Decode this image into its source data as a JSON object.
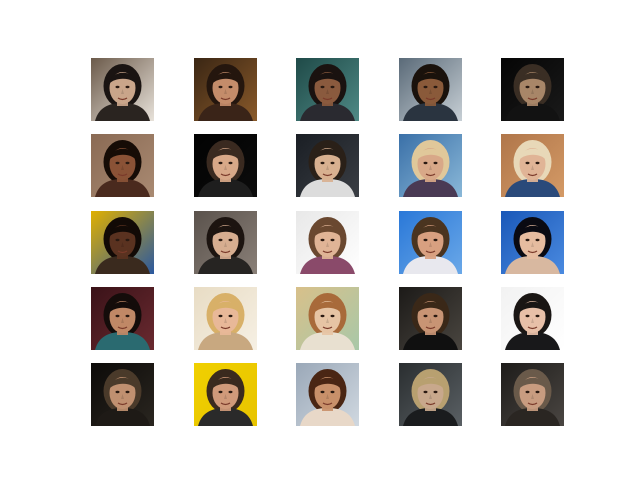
{
  "grid": {
    "rows": 5,
    "cols": 5,
    "tiles": [
      {
        "name": "face-bearded-man-dark-hair",
        "bg": "#6b5a4a",
        "bg2": "#e8e2da",
        "skin": "#c9a58a",
        "hair": "#1a1412",
        "shirt": "#2a2420"
      },
      {
        "name": "face-woman-dark-wavy-hair",
        "bg": "#3a2614",
        "bg2": "#8a5a2a",
        "skin": "#c48c6a",
        "hair": "#24160e",
        "shirt": "#3a2418"
      },
      {
        "name": "face-man-short-hair-teal-bg",
        "bg": "#1f4a48",
        "bg2": "#4f8a86",
        "skin": "#8a5a3e",
        "hair": "#1a1210",
        "shirt": "#2a2a30"
      },
      {
        "name": "face-woman-curly-hair-fence",
        "bg": "#5a6a78",
        "bg2": "#c7cfd5",
        "skin": "#8a5a3a",
        "hair": "#1a120c",
        "shirt": "#2a3440"
      },
      {
        "name": "face-man-long-hair-dark-bg",
        "bg": "#050505",
        "bg2": "#1a1a1a",
        "skin": "#a88668",
        "hair": "#3a2e24",
        "shirt": "#121212"
      },
      {
        "name": "face-woman-long-dark-hair",
        "bg": "#8a6a54",
        "bg2": "#a98a72",
        "skin": "#8a5236",
        "hair": "#160c06",
        "shirt": "#4a2a1e"
      },
      {
        "name": "face-bald-man-black-bg",
        "bg": "#020202",
        "bg2": "#0c0c0c",
        "skin": "#d8a888",
        "hair": "#3a2a20",
        "shirt": "#1e1e1e"
      },
      {
        "name": "face-bald-man-smiling",
        "bg": "#1a1e24",
        "bg2": "#3a3e44",
        "skin": "#d8b090",
        "hair": "#2a2018",
        "shirt": "#dcdcdc"
      },
      {
        "name": "face-older-woman-blonde",
        "bg": "#3a70a8",
        "bg2": "#8ab8d8",
        "skin": "#d8a888",
        "hair": "#e0c89a",
        "shirt": "#4a3a54"
      },
      {
        "name": "face-woman-short-blonde-hair",
        "bg": "#b0764a",
        "bg2": "#d49a66",
        "skin": "#e0b496",
        "hair": "#e8d8b8",
        "shirt": "#2a4a7a"
      },
      {
        "name": "face-woman-curly-hair-yellow-bg",
        "bg": "#e0b000",
        "bg2": "#2a58a0",
        "skin": "#5a3220",
        "hair": "#120a06",
        "shirt": "#3a2a1e"
      },
      {
        "name": "face-man-dark-hair-grey-bg",
        "bg": "#5a524c",
        "bg2": "#8a8078",
        "skin": "#d6ad90",
        "hair": "#1c1410",
        "shirt": "#262422"
      },
      {
        "name": "face-young-man-fringe",
        "bg": "#e8e8e8",
        "bg2": "#ffffff",
        "skin": "#e0b496",
        "hair": "#6a4830",
        "shirt": "#8a4a6a"
      },
      {
        "name": "face-man-smiling-blue-bg",
        "bg": "#2a78d8",
        "bg2": "#6aa8e8",
        "skin": "#d8a080",
        "hair": "#4a3420",
        "shirt": "#e8e8ee"
      },
      {
        "name": "face-woman-black-hair-blue-bg",
        "bg": "#1a58b8",
        "bg2": "#4a8ae0",
        "skin": "#e6bca0",
        "hair": "#0a0a12",
        "shirt": "#d8b8a0"
      },
      {
        "name": "face-man-dark-hair-maroon-bg",
        "bg": "#3a1218",
        "bg2": "#6a2a30",
        "skin": "#c08866",
        "hair": "#140c0a",
        "shirt": "#2a6a70"
      },
      {
        "name": "face-woman-blonde-cream-bg",
        "bg": "#e8dcc4",
        "bg2": "#f6f0e4",
        "skin": "#e8b898",
        "hair": "#d8b068",
        "shirt": "#c8a880"
      },
      {
        "name": "face-vintage-woman-portrait",
        "bg": "#d8c08a",
        "bg2": "#a8c8a8",
        "skin": "#e6c4a4",
        "hair": "#a86a3a",
        "shirt": "#e8e0d0"
      },
      {
        "name": "face-man-short-hair-suit",
        "bg": "#1c1a18",
        "bg2": "#4a4640",
        "skin": "#c89474",
        "hair": "#3a2818",
        "shirt": "#101010"
      },
      {
        "name": "face-young-person-dark-hair",
        "bg": "#f2f2f2",
        "bg2": "#ffffff",
        "skin": "#e8c0a8",
        "hair": "#1a1614",
        "shirt": "#18181a"
      },
      {
        "name": "face-bald-man-glasses",
        "bg": "#0c0a08",
        "bg2": "#2a2620",
        "skin": "#c09070",
        "hair": "#4a3a2a",
        "shirt": "#1e1a16"
      },
      {
        "name": "face-man-smiling-yellow-bg",
        "bg": "#f0d000",
        "bg2": "#e8c400",
        "skin": "#d09a7a",
        "hair": "#3a2a1e",
        "shirt": "#2a2a2a"
      },
      {
        "name": "face-woman-brown-hair-smiling",
        "bg": "#9aa8b8",
        "bg2": "#d0d8e0",
        "skin": "#c8906a",
        "hair": "#4a2614",
        "shirt": "#e8d8c8"
      },
      {
        "name": "face-man-blond-hair-dark-bg",
        "bg": "#2a2e30",
        "bg2": "#5a6064",
        "skin": "#c8a88c",
        "hair": "#b8a070",
        "shirt": "#1a1c1e"
      },
      {
        "name": "face-older-man-dark-bg",
        "bg": "#1e1c1a",
        "bg2": "#4a4642",
        "skin": "#c89c80",
        "hair": "#6a5a4a",
        "shirt": "#2a2622"
      }
    ]
  }
}
